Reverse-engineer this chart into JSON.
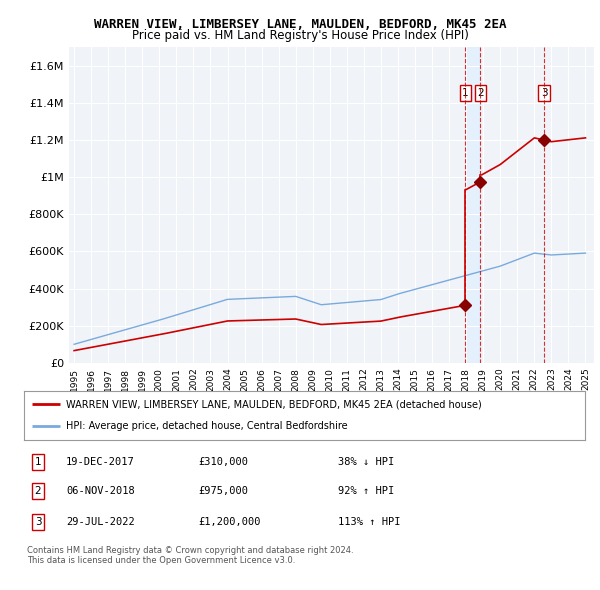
{
  "title": "WARREN VIEW, LIMBERSEY LANE, MAULDEN, BEDFORD, MK45 2EA",
  "subtitle": "Price paid vs. HM Land Registry's House Price Index (HPI)",
  "ylim": [
    0,
    1700000
  ],
  "yticks": [
    0,
    200000,
    400000,
    600000,
    800000,
    1000000,
    1200000,
    1400000,
    1600000
  ],
  "ytick_labels": [
    "£0",
    "£200K",
    "£400K",
    "£600K",
    "£800K",
    "£1M",
    "£1.2M",
    "£1.4M",
    "£1.6M"
  ],
  "background_color": "#ffffff",
  "plot_bg_color": "#f0f4f8",
  "grid_color": "#ffffff",
  "sale_prices": [
    310000,
    975000,
    1200000
  ],
  "sale_years": [
    2017.96,
    2018.84,
    2022.57
  ],
  "sale_labels": [
    "1",
    "2",
    "3"
  ],
  "legend_entries": [
    "WARREN VIEW, LIMBERSEY LANE, MAULDEN, BEDFORD, MK45 2EA (detached house)",
    "HPI: Average price, detached house, Central Bedfordshire"
  ],
  "table_data": [
    [
      "1",
      "19-DEC-2017",
      "£310,000",
      "38% ↓ HPI"
    ],
    [
      "2",
      "06-NOV-2018",
      "£975,000",
      "92% ↑ HPI"
    ],
    [
      "3",
      "29-JUL-2022",
      "£1,200,000",
      "113% ↑ HPI"
    ]
  ],
  "footnote": "Contains HM Land Registry data © Crown copyright and database right 2024.\nThis data is licensed under the Open Government Licence v3.0.",
  "sale_line_color": "#cc0000",
  "hpi_line_color": "#7aaadd",
  "sale_marker_color": "#880000",
  "dashed_line_color": "#cc0000",
  "shade_color": "#ddeeff"
}
